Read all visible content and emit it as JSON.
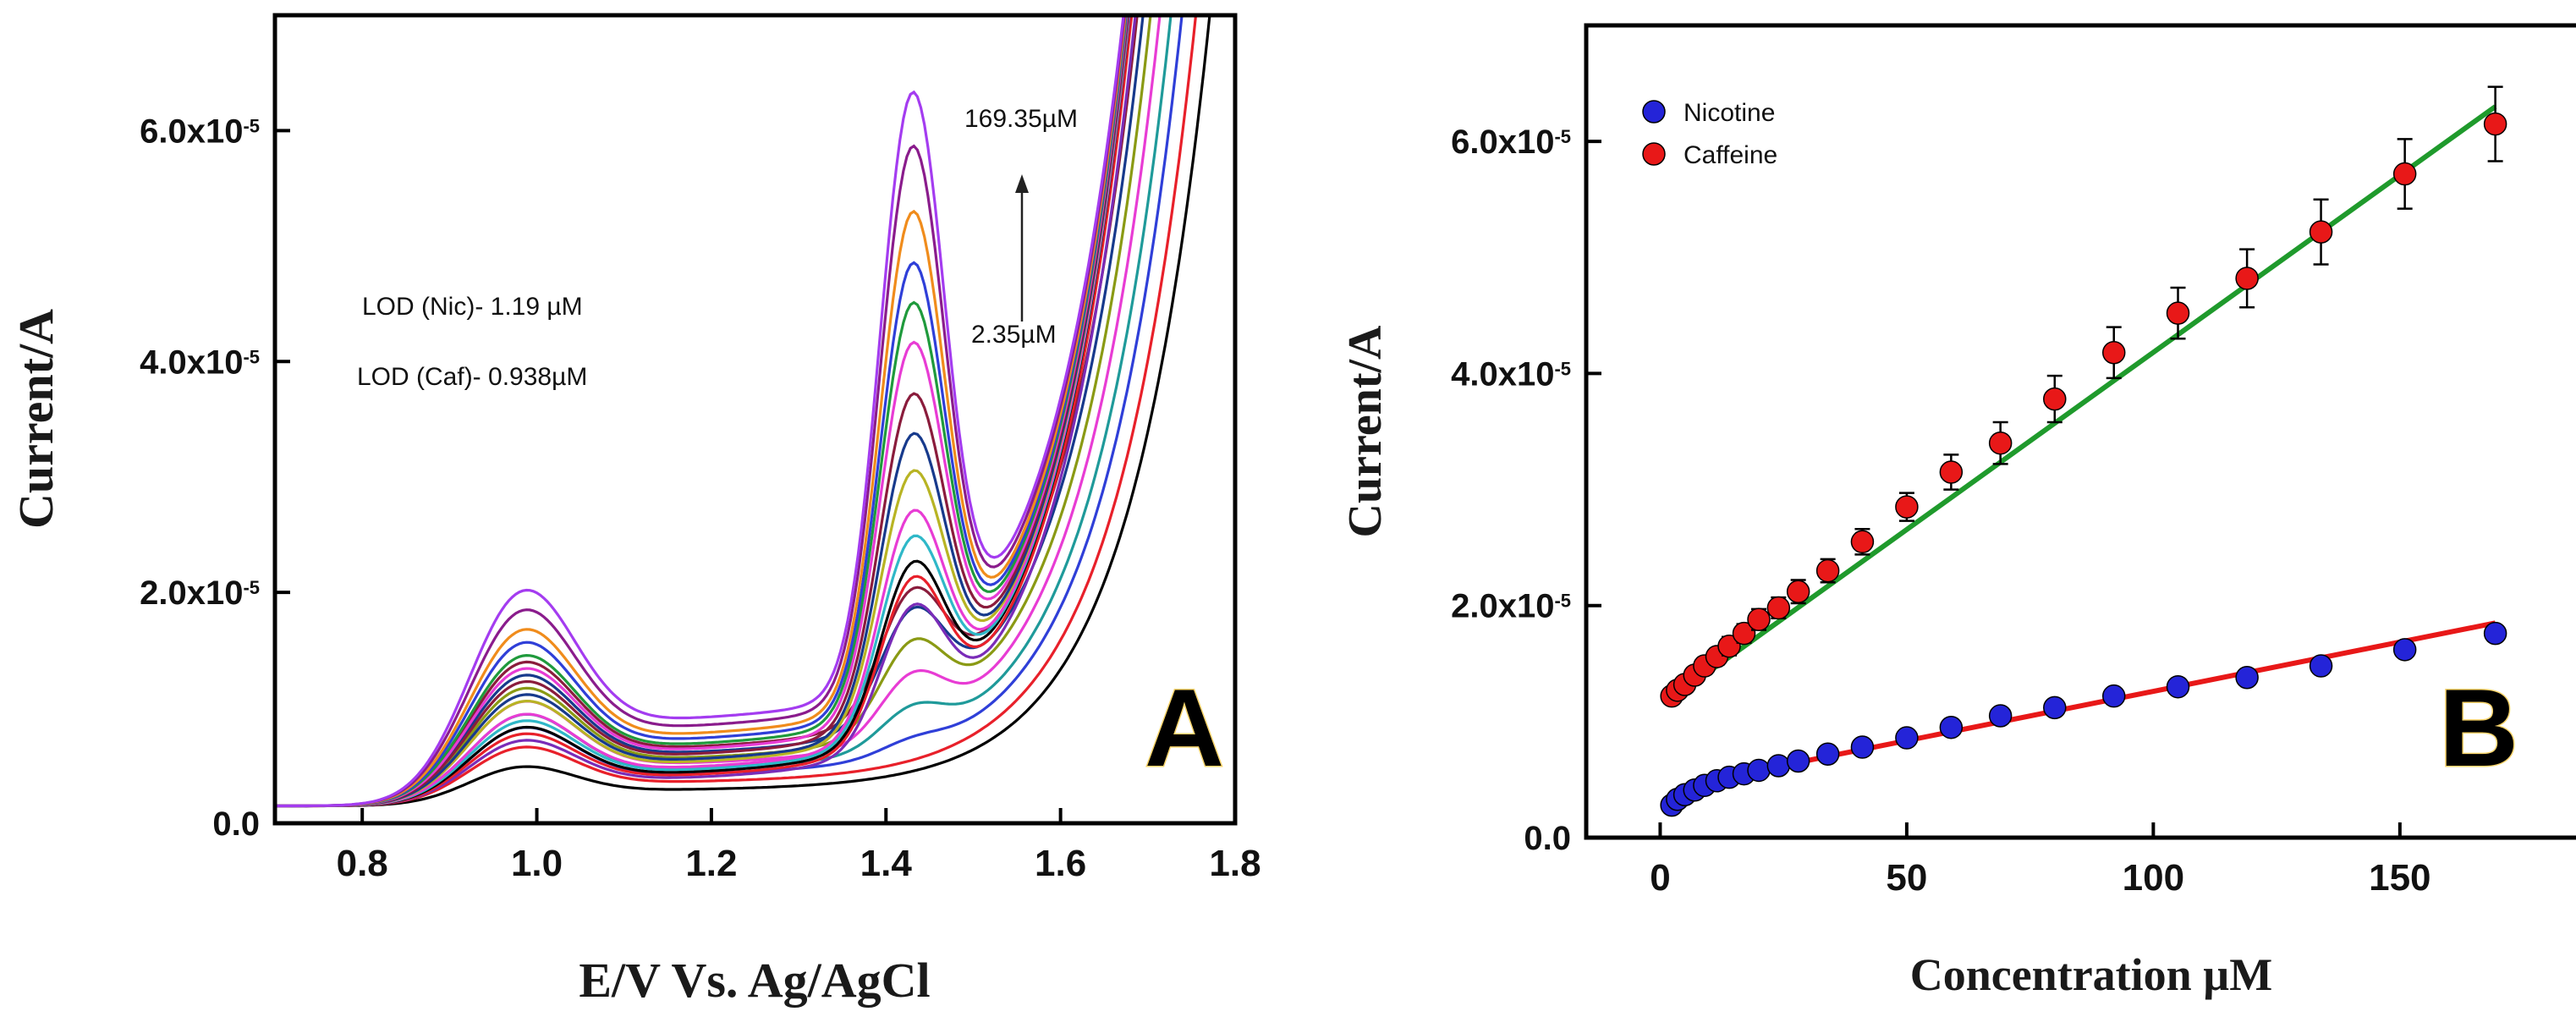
{
  "chart_data": [
    {
      "panel_letter": "A",
      "type": "line",
      "xlabel": "E/V Vs. Ag/AgCl",
      "ylabel": "Current/A",
      "xlim": [
        0.7,
        1.8
      ],
      "ylim": [
        0,
        7e-05
      ],
      "x_ticks": [
        0.8,
        1.0,
        1.2,
        1.4,
        1.6,
        1.8
      ],
      "x_tick_labels": [
        "0.8",
        "1.0",
        "1.2",
        "1.4",
        "1.6",
        "1.8"
      ],
      "y_ticks": [
        0,
        2e-05,
        4e-05,
        6e-05
      ],
      "y_tick_labels": [
        {
          "mantissa": "0.0",
          "exponent": ""
        },
        {
          "mantissa": "2.0x10",
          "exponent": "-5"
        },
        {
          "mantissa": "4.0x10",
          "exponent": "-5"
        },
        {
          "mantissa": "6.0x10",
          "exponent": "-5"
        }
      ],
      "annotations": {
        "lod_nic": "LOD (Nic)- 1.19 µM",
        "lod_caf": "LOD (Caf)- 0.938µM",
        "conc_high": "169.35µM",
        "conc_low": "2.35µM",
        "arrow": "up"
      },
      "grid": false,
      "curve_model": {
        "params": "[nicotine peak height A, caffeine peak height A, background offset V]",
        "nic_peak_E": 0.98,
        "caf_peak_E": 1.43
      },
      "series": [
        {
          "color": "#000000",
          "params": [
            3e-06,
            0.0,
            0.09
          ]
        },
        {
          "color": "#e8202a",
          "params": [
            4.5e-06,
            0.0,
            0.075
          ]
        },
        {
          "color": "#2f3fd8",
          "params": [
            6e-06,
            1e-06,
            0.06
          ]
        },
        {
          "color": "#1f9a9a",
          "params": [
            7e-06,
            3e-06,
            0.048
          ]
        },
        {
          "color": "#e83cd4",
          "params": [
            8e-06,
            5e-06,
            0.036
          ]
        },
        {
          "color": "#8a9a14",
          "params": [
            9e-06,
            7e-06,
            0.026
          ]
        },
        {
          "color": "#173a8c",
          "params": [
            1e-05,
            9e-06,
            0.018
          ]
        },
        {
          "color": "#8a1c3c",
          "params": [
            1.1e-05,
            1e-05,
            0.012
          ]
        },
        {
          "color": "#7a2cb8",
          "params": [
            5e-06,
            1.1e-05,
            0.006
          ]
        },
        {
          "color": "#e8202a",
          "params": [
            5.5e-06,
            1.3e-05,
            0.002
          ]
        },
        {
          "color": "#000000",
          "params": [
            6e-06,
            1.4e-05,
            0.0
          ]
        },
        {
          "color": "#2fb8c8",
          "params": [
            6.5e-06,
            1.6e-05,
            0.0
          ]
        },
        {
          "color": "#e83cd4",
          "params": [
            7e-06,
            1.8e-05,
            0.0
          ]
        },
        {
          "color": "#b8b424",
          "params": [
            8e-06,
            2.1e-05,
            0.0
          ]
        },
        {
          "color": "#173a8c",
          "params": [
            8.5e-06,
            2.4e-05,
            0.0
          ]
        },
        {
          "color": "#8a1c3c",
          "params": [
            9.5e-06,
            2.7e-05,
            0.0
          ]
        },
        {
          "color": "#e83cd4",
          "params": [
            1.05e-05,
            3.1e-05,
            0.0
          ]
        },
        {
          "color": "#1f9a3c",
          "params": [
            1.15e-05,
            3.4e-05,
            0.0
          ]
        },
        {
          "color": "#2f3fd8",
          "params": [
            1.25e-05,
            3.7e-05,
            0.0
          ]
        },
        {
          "color": "#f08c1c",
          "params": [
            1.35e-05,
            4.1e-05,
            0.0
          ]
        },
        {
          "color": "#8a1c8c",
          "params": [
            1.5e-05,
            4.6e-05,
            0.0
          ]
        },
        {
          "color": "#a43cf0",
          "params": [
            1.65e-05,
            5e-05,
            0.0
          ]
        }
      ]
    },
    {
      "panel_letter": "B",
      "type": "scatter",
      "xlabel": "Concentration µM",
      "ylabel": "Current/A",
      "xlim": [
        -15,
        190
      ],
      "ylim": [
        0,
        7e-05
      ],
      "x_ticks": [
        0,
        50,
        100,
        150
      ],
      "x_tick_labels": [
        "0",
        "50",
        "100",
        "150"
      ],
      "y_ticks": [
        0,
        2e-05,
        4e-05,
        6e-05
      ],
      "y_tick_labels": [
        {
          "mantissa": "0.0",
          "exponent": ""
        },
        {
          "mantissa": "2.0x10",
          "exponent": "-5"
        },
        {
          "mantissa": "4.0x10",
          "exponent": "-5"
        },
        {
          "mantissa": "6.0x10",
          "exponent": "-5"
        }
      ],
      "legend_position": "top-left",
      "grid": false,
      "series": [
        {
          "name": "Nicotine",
          "color": "#2424d8",
          "fit_color": "#e81818",
          "x": [
            2.35,
            3.5,
            5,
            7,
            9,
            11.5,
            14,
            17,
            20,
            24,
            28,
            34,
            41,
            50,
            59,
            69,
            80,
            92,
            105,
            119,
            134,
            151,
            169.35
          ],
          "y": [
            2.8e-06,
            3.3e-06,
            3.7e-06,
            4.1e-06,
            4.5e-06,
            4.9e-06,
            5.2e-06,
            5.5e-06,
            5.8e-06,
            6.2e-06,
            6.6e-06,
            7.2e-06,
            7.8e-06,
            8.6e-06,
            9.5e-06,
            1.05e-05,
            1.12e-05,
            1.22e-05,
            1.3e-05,
            1.38e-05,
            1.48e-05,
            1.62e-05,
            1.76e-05
          ],
          "fit_segments": [
            {
              "x": [
                2.35,
                14
              ],
              "y": [
                3e-06,
                5.3e-06
              ]
            },
            {
              "x": [
                14,
                169.35
              ],
              "y": [
                5.3e-06,
                1.85e-05
              ]
            }
          ]
        },
        {
          "name": "Caffeine",
          "color": "#e81818",
          "fit_color": "#1f9a2c",
          "x": [
            2.35,
            3.5,
            5,
            7,
            9,
            11.5,
            14,
            17,
            20,
            24,
            28,
            34,
            41,
            50,
            59,
            69,
            80,
            92,
            105,
            119,
            134,
            151,
            169.35
          ],
          "y": [
            1.22e-05,
            1.27e-05,
            1.32e-05,
            1.4e-05,
            1.48e-05,
            1.56e-05,
            1.65e-05,
            1.76e-05,
            1.88e-05,
            1.98e-05,
            2.12e-05,
            2.3e-05,
            2.55e-05,
            2.85e-05,
            3.15e-05,
            3.4e-05,
            3.78e-05,
            4.18e-05,
            4.52e-05,
            4.82e-05,
            5.22e-05,
            5.72e-05,
            6.15e-05
          ],
          "error": [
            5e-07,
            5e-07,
            6e-07,
            6e-07,
            7e-07,
            7e-07,
            8e-07,
            8e-07,
            9e-07,
            9e-07,
            1e-06,
            1e-06,
            1.1e-06,
            1.2e-06,
            1.5e-06,
            1.8e-06,
            2e-06,
            2.2e-06,
            2.2e-06,
            2.5e-06,
            2.8e-06,
            3e-06,
            3.2e-06
          ],
          "fit_segments": [
            {
              "x": [
                2.35,
                169.35
              ],
              "y": [
                1.2e-05,
                6.3e-05
              ]
            }
          ]
        }
      ]
    }
  ]
}
